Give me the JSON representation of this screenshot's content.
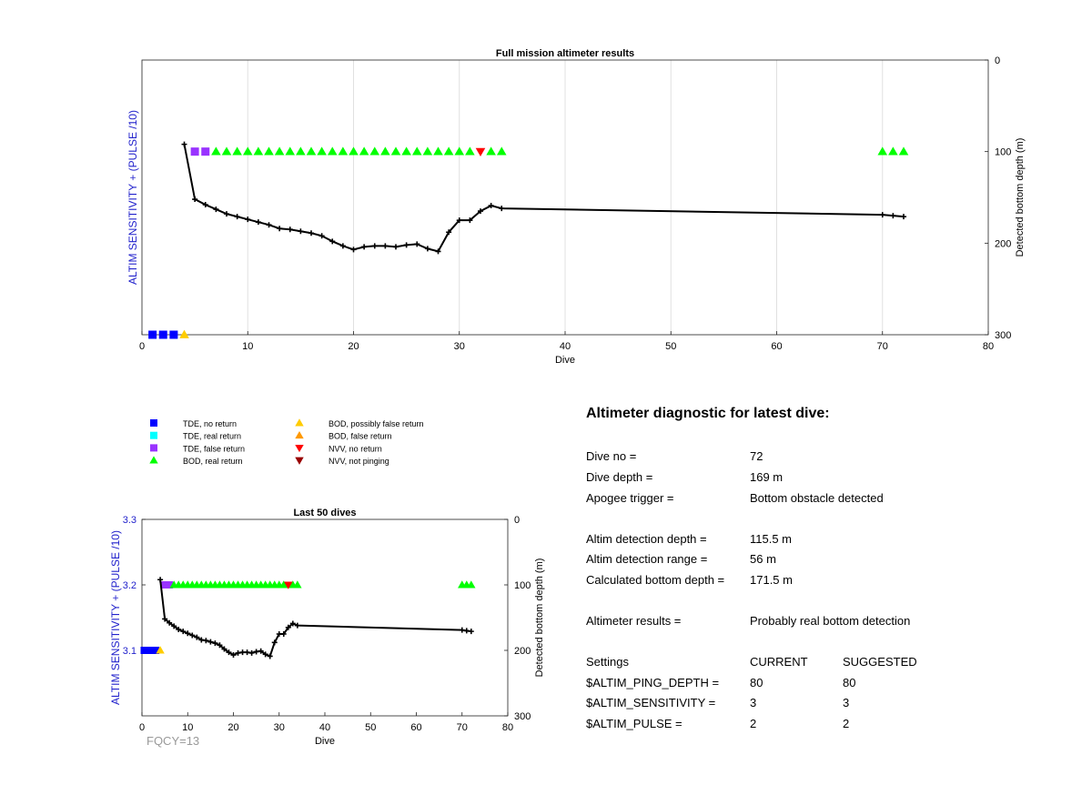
{
  "top_chart": {
    "title": "Full mission altimeter results",
    "xlabel": "Dive",
    "ylabel_left": "ALTIM SENSITIVITY + (PULSE /10)",
    "ylabel_right": "Detected bottom depth (m)",
    "xticks": [
      "0",
      "10",
      "20",
      "30",
      "40",
      "50",
      "60",
      "70",
      "80"
    ],
    "yticks_right": [
      "0",
      "100",
      "200",
      "300"
    ]
  },
  "bottom_chart": {
    "title": "Last 50 dives",
    "xlabel": "Dive",
    "ylabel_left": "ALTIM SENSITIVITY + (PULSE /10)",
    "ylabel_right": "Detected bottom depth (m)",
    "xticks": [
      "0",
      "10",
      "20",
      "30",
      "40",
      "50",
      "60",
      "70",
      "80"
    ],
    "yticks_left": [
      "3.1",
      "3.2",
      "3.3"
    ],
    "yticks_right": [
      "0",
      "100",
      "200",
      "300"
    ]
  },
  "legend": [
    {
      "label": "TDE, no return",
      "marker": "square",
      "color": "#0000ff"
    },
    {
      "label": "TDE, real return",
      "marker": "square",
      "color": "#00ffff"
    },
    {
      "label": "TDE, false return",
      "marker": "square",
      "color": "#9933ff"
    },
    {
      "label": "BOD, real return",
      "marker": "triangle-up",
      "color": "#00ff00"
    },
    {
      "label": "BOD, possibly false return",
      "marker": "triangle-up",
      "color": "#ffcc00"
    },
    {
      "label": "BOD, false return",
      "marker": "triangle-up",
      "color": "#ff9900"
    },
    {
      "label": "NVV, no return",
      "marker": "triangle-down",
      "color": "#ff0000"
    },
    {
      "label": "NVV, not pinging",
      "marker": "triangle-down",
      "color": "#990000"
    }
  ],
  "fqcy": "FQCY=13",
  "diagnostic": {
    "title": "Altimeter diagnostic for latest dive:",
    "rows": [
      {
        "label": "Dive no =",
        "value": "72"
      },
      {
        "label": "Dive depth =",
        "value": "169 m"
      },
      {
        "label": "Apogee trigger =",
        "value": "Bottom obstacle detected"
      },
      {
        "label": "Altim detection depth =",
        "value": "115.5 m"
      },
      {
        "label": "Altim detection range =",
        "value": "56 m"
      },
      {
        "label": "Calculated bottom depth =",
        "value": "171.5 m"
      },
      {
        "label": "Altimeter results =",
        "value": "Probably real bottom detection"
      }
    ],
    "settings_header": {
      "label": "Settings",
      "current": "CURRENT",
      "suggested": "SUGGESTED"
    },
    "settings": [
      {
        "label": "$ALTIM_PING_DEPTH =",
        "current": "80",
        "suggested": "80"
      },
      {
        "label": "$ALTIM_SENSITIVITY =",
        "current": "3",
        "suggested": "3"
      },
      {
        "label": "$ALTIM_PULSE =",
        "current": "2",
        "suggested": "2"
      }
    ]
  },
  "chart_data": [
    {
      "type": "line",
      "title": "Full mission altimeter results",
      "xlabel": "Dive",
      "ylabel": "ALTIM SENSITIVITY + (PULSE /10)",
      "y2label": "Detected bottom depth (m)",
      "xlim": [
        0,
        80
      ],
      "y2lim": [
        0,
        300
      ],
      "y2_reversed": true,
      "grid": true,
      "series": [
        {
          "name": "Detected bottom depth",
          "axis": "right",
          "x": [
            4,
            5,
            6,
            7,
            8,
            9,
            10,
            11,
            12,
            13,
            14,
            15,
            16,
            17,
            18,
            19,
            20,
            21,
            22,
            23,
            24,
            25,
            26,
            27,
            28,
            29,
            30,
            31,
            32,
            33,
            34,
            70,
            71,
            72
          ],
          "y": [
            92,
            152,
            158,
            163,
            168,
            171,
            174,
            177,
            180,
            184,
            185,
            187,
            189,
            192,
            198,
            203,
            207,
            204,
            203,
            203,
            204,
            202,
            201,
            206,
            209,
            188,
            175,
            175,
            165,
            159,
            162,
            169,
            170,
            171
          ]
        },
        {
          "name": "TDE, no return",
          "marker": "square",
          "x": [
            1,
            2,
            3
          ],
          "y2": [
            300,
            300,
            300
          ]
        },
        {
          "name": "BOD, possibly false return",
          "marker": "triangle-up",
          "x": [
            4
          ],
          "y2": [
            300
          ]
        },
        {
          "name": "TDE, false return",
          "marker": "square",
          "x": [
            5,
            6
          ],
          "y2": [
            100,
            100
          ]
        },
        {
          "name": "BOD, real return",
          "marker": "triangle-up",
          "x": [
            7,
            8,
            9,
            10,
            11,
            12,
            13,
            14,
            15,
            16,
            17,
            18,
            19,
            20,
            21,
            22,
            23,
            24,
            25,
            26,
            27,
            28,
            29,
            30,
            31,
            33,
            34,
            70,
            71,
            72
          ],
          "y2": [
            100,
            100,
            100,
            100,
            100,
            100,
            100,
            100,
            100,
            100,
            100,
            100,
            100,
            100,
            100,
            100,
            100,
            100,
            100,
            100,
            100,
            100,
            100,
            100,
            100,
            100,
            100,
            100,
            100,
            100
          ]
        },
        {
          "name": "NVV, no return",
          "marker": "triangle-down",
          "x": [
            32
          ],
          "y2": [
            100
          ]
        }
      ]
    },
    {
      "type": "line",
      "title": "Last 50 dives",
      "xlabel": "Dive",
      "ylabel": "ALTIM SENSITIVITY + (PULSE /10)",
      "y2label": "Detected bottom depth (m)",
      "xlim": [
        0,
        80
      ],
      "ylim": [
        3.0,
        3.3
      ],
      "y2lim": [
        0,
        300
      ],
      "y2_reversed": true,
      "grid": false,
      "series": [
        {
          "name": "Detected bottom depth",
          "axis": "right",
          "x": [
            4,
            5,
            6,
            7,
            8,
            9,
            10,
            11,
            12,
            13,
            14,
            15,
            16,
            17,
            18,
            19,
            20,
            21,
            22,
            23,
            24,
            25,
            26,
            27,
            28,
            29,
            30,
            31,
            32,
            33,
            34,
            70,
            71,
            72
          ],
          "y": [
            92,
            152,
            158,
            163,
            168,
            171,
            174,
            177,
            180,
            184,
            185,
            187,
            189,
            192,
            198,
            203,
            207,
            204,
            203,
            203,
            204,
            202,
            201,
            206,
            209,
            188,
            175,
            175,
            165,
            159,
            162,
            169,
            170,
            171
          ]
        },
        {
          "name": "TDE, no return",
          "marker": "square",
          "x": [
            0.5,
            1,
            1.5,
            2,
            2.5,
            3
          ],
          "y2": [
            200,
            200,
            200,
            200,
            200,
            200
          ]
        },
        {
          "name": "BOD, possibly false return",
          "marker": "triangle-up",
          "x": [
            4
          ],
          "y2": [
            200
          ]
        },
        {
          "name": "TDE, false return",
          "marker": "square",
          "x": [
            5,
            6
          ],
          "y2": [
            100,
            100
          ]
        },
        {
          "name": "BOD, real return",
          "marker": "triangle-up",
          "x": [
            7,
            8,
            9,
            10,
            11,
            12,
            13,
            14,
            15,
            16,
            17,
            18,
            19,
            20,
            21,
            22,
            23,
            24,
            25,
            26,
            27,
            28,
            29,
            30,
            31,
            33,
            34,
            70,
            71,
            72
          ],
          "y2": [
            100,
            100,
            100,
            100,
            100,
            100,
            100,
            100,
            100,
            100,
            100,
            100,
            100,
            100,
            100,
            100,
            100,
            100,
            100,
            100,
            100,
            100,
            100,
            100,
            100,
            100,
            100,
            100,
            100,
            100
          ]
        },
        {
          "name": "NVV, no return",
          "marker": "triangle-down",
          "x": [
            32
          ],
          "y2": [
            100
          ]
        }
      ]
    }
  ]
}
